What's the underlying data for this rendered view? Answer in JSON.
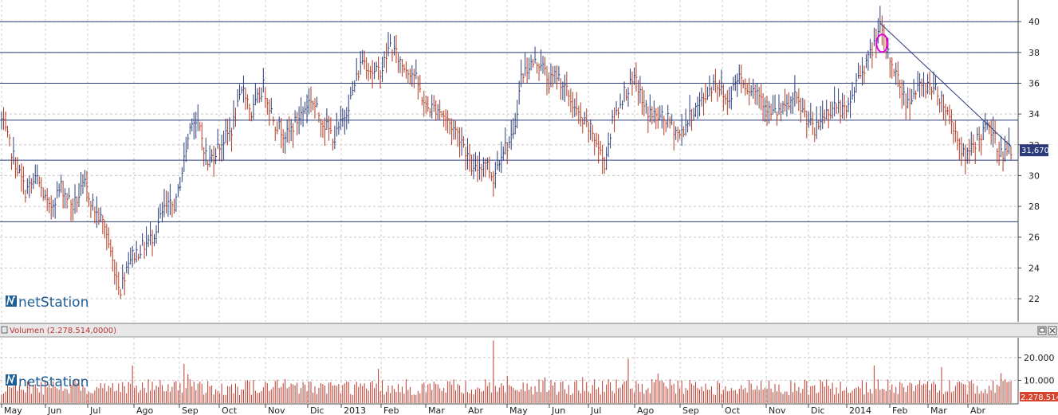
{
  "logo": {
    "text": "netStation",
    "accent_color": "#1d5e96"
  },
  "chart_data": [
    {
      "type": "candlestick",
      "title": "",
      "y_ticks": [
        22,
        24,
        26,
        28,
        30,
        32,
        34,
        36,
        38,
        40
      ],
      "ylim": [
        20.5,
        41.2
      ],
      "last_value": 31.67,
      "last_value_label": "31,670",
      "x_labels": [
        "May",
        "Jun",
        "Jul",
        "Ago",
        "Sep",
        "Oct",
        "Nov",
        "Dic",
        "2013",
        "Feb",
        "Mar",
        "Abr",
        "May",
        "Jun",
        "Jul",
        "Ago",
        "Sep",
        "Oct",
        "Nov",
        "Dic",
        "2014",
        "Feb",
        "Mar",
        "Abr"
      ],
      "n_bars": 510,
      "support_resistance_lines": [
        40.0,
        38.0,
        36.0,
        33.6,
        31.0,
        27.0
      ],
      "trendline": {
        "from": {
          "bar": 443,
          "value": 39.9
        },
        "to": {
          "bar": 509,
          "value": 31.9
        }
      },
      "highlight_marker": {
        "bar": 444,
        "value": 38.6,
        "color": "#e000e0"
      },
      "price_path": [
        [
          0,
          33.6
        ],
        [
          6,
          31.2
        ],
        [
          12,
          29.0
        ],
        [
          18,
          29.8
        ],
        [
          24,
          27.8
        ],
        [
          30,
          29.3
        ],
        [
          36,
          28.0
        ],
        [
          42,
          29.4
        ],
        [
          48,
          27.5
        ],
        [
          52,
          26.8
        ],
        [
          56,
          24.4
        ],
        [
          60,
          22.6
        ],
        [
          64,
          24.6
        ],
        [
          70,
          25.2
        ],
        [
          76,
          26.0
        ],
        [
          82,
          27.8
        ],
        [
          88,
          28.2
        ],
        [
          92,
          31.0
        ],
        [
          96,
          33.8
        ],
        [
          100,
          33.0
        ],
        [
          104,
          30.8
        ],
        [
          110,
          32.0
        ],
        [
          116,
          33.0
        ],
        [
          122,
          35.8
        ],
        [
          126,
          34.0
        ],
        [
          132,
          35.8
        ],
        [
          138,
          33.4
        ],
        [
          144,
          32.6
        ],
        [
          150,
          33.8
        ],
        [
          156,
          35.0
        ],
        [
          162,
          33.5
        ],
        [
          168,
          32.4
        ],
        [
          172,
          33.6
        ],
        [
          176,
          35.0
        ],
        [
          182,
          37.6
        ],
        [
          188,
          36.6
        ],
        [
          192,
          37.0
        ],
        [
          196,
          38.5
        ],
        [
          202,
          37.2
        ],
        [
          208,
          36.6
        ],
        [
          214,
          34.4
        ],
        [
          220,
          34.4
        ],
        [
          226,
          33.4
        ],
        [
          232,
          32.4
        ],
        [
          238,
          30.2
        ],
        [
          244,
          31.0
        ],
        [
          248,
          29.8
        ],
        [
          252,
          31.6
        ],
        [
          258,
          32.4
        ],
        [
          262,
          36.4
        ],
        [
          266,
          37.2
        ],
        [
          272,
          37.4
        ],
        [
          276,
          36.0
        ],
        [
          280,
          36.6
        ],
        [
          286,
          35.2
        ],
        [
          292,
          33.6
        ],
        [
          298,
          32.8
        ],
        [
          304,
          30.8
        ],
        [
          308,
          33.4
        ],
        [
          314,
          35.4
        ],
        [
          320,
          36.2
        ],
        [
          324,
          34.4
        ],
        [
          330,
          33.8
        ],
        [
          336,
          33.6
        ],
        [
          342,
          32.6
        ],
        [
          348,
          34.0
        ],
        [
          354,
          35.0
        ],
        [
          360,
          36.2
        ],
        [
          366,
          34.8
        ],
        [
          372,
          36.6
        ],
        [
          376,
          35.8
        ],
        [
          382,
          35.4
        ],
        [
          388,
          34.0
        ],
        [
          394,
          34.2
        ],
        [
          400,
          35.0
        ],
        [
          406,
          33.8
        ],
        [
          410,
          32.8
        ],
        [
          414,
          33.8
        ],
        [
          420,
          34.6
        ],
        [
          426,
          34.0
        ],
        [
          432,
          36.4
        ],
        [
          438,
          37.8
        ],
        [
          443,
          39.6
        ],
        [
          446,
          38.2
        ],
        [
          450,
          37.0
        ],
        [
          456,
          34.8
        ],
        [
          462,
          35.6
        ],
        [
          468,
          36.0
        ],
        [
          474,
          35.0
        ],
        [
          480,
          33.2
        ],
        [
          486,
          31.0
        ],
        [
          492,
          32.4
        ],
        [
          498,
          33.2
        ],
        [
          504,
          31.4
        ],
        [
          509,
          31.67
        ]
      ]
    },
    {
      "type": "bar",
      "title": "Volumen (2.278.514,0000)",
      "y_ticks": [
        10000,
        20000
      ],
      "y_tick_labels": [
        "10.000",
        "20.000"
      ],
      "ylim": [
        0,
        28000
      ],
      "last_value_label": "2.278.514",
      "bar_color": "#c0392b",
      "spikes": [
        [
          248,
          27500
        ],
        [
          316,
          19500
        ],
        [
          66,
          16500
        ],
        [
          92,
          17200
        ],
        [
          190,
          15000
        ],
        [
          474,
          15800
        ],
        [
          440,
          16500
        ]
      ]
    }
  ]
}
